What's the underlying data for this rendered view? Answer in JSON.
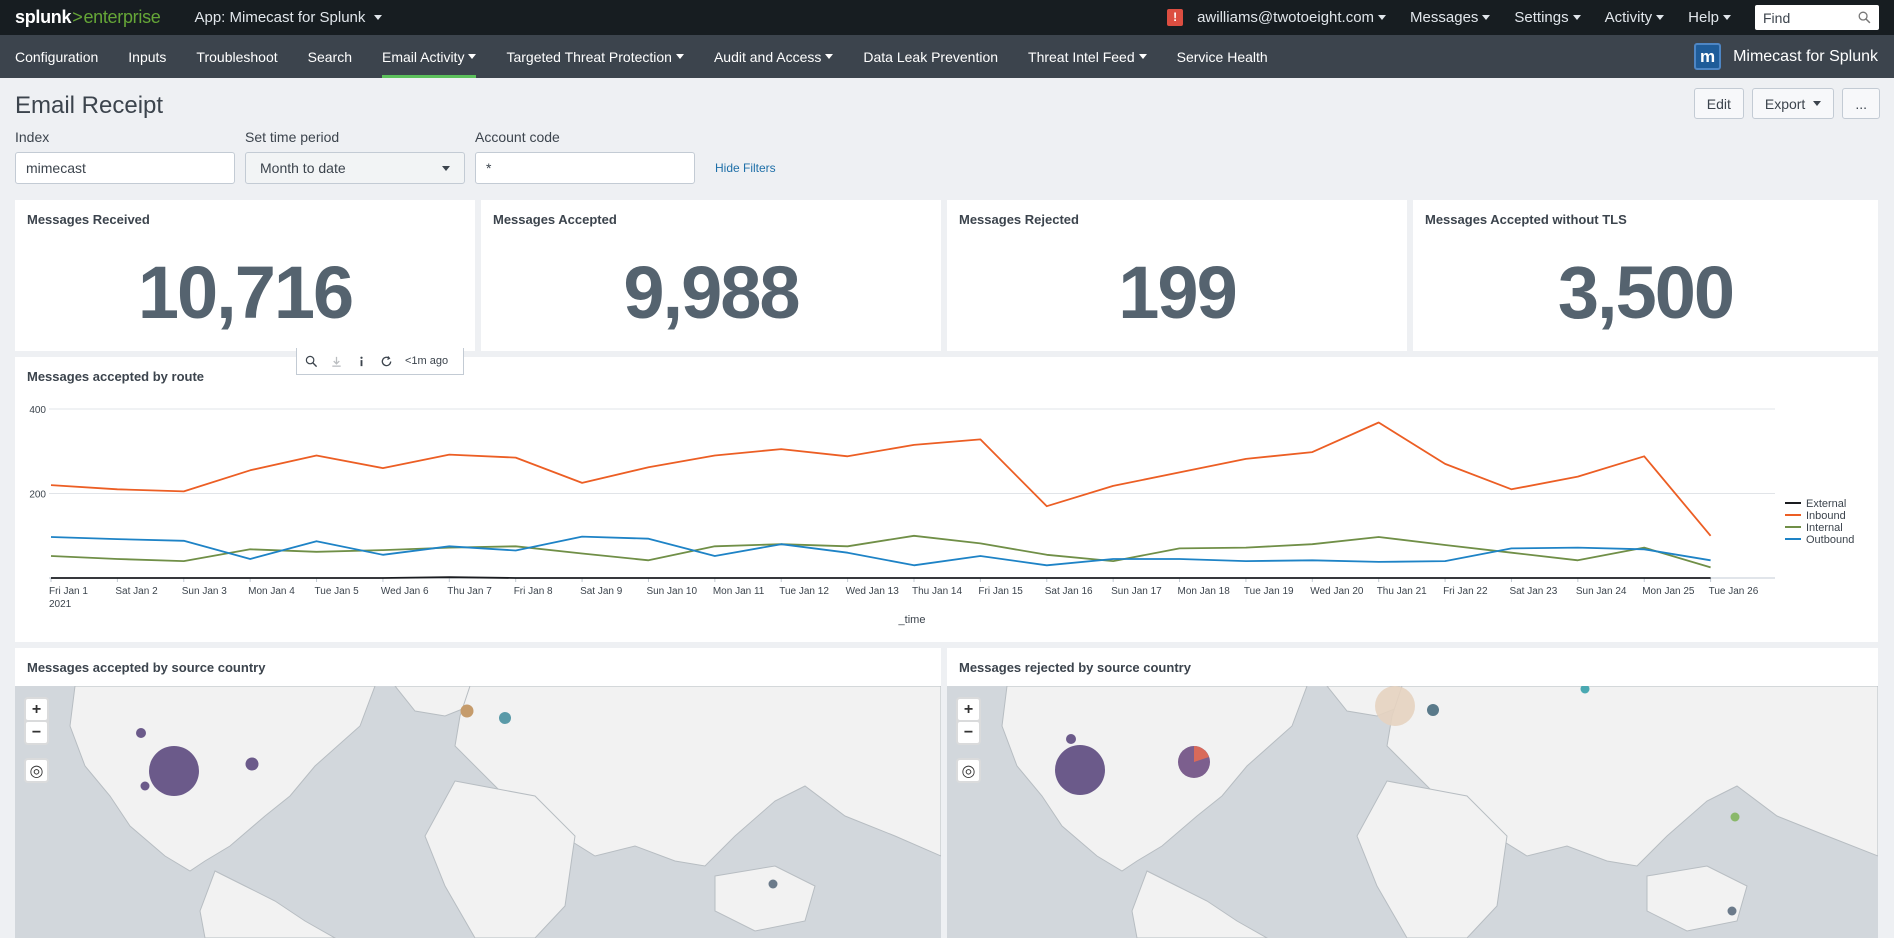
{
  "topbar": {
    "logo_main": "splunk",
    "logo_gt": ">",
    "logo_product": "enterprise",
    "app_label": "App: Mimecast for Splunk",
    "alert_badge": "!",
    "user": "awilliams@twotoeight.com",
    "messages": "Messages",
    "settings": "Settings",
    "activity": "Activity",
    "help": "Help",
    "find_placeholder": "Find"
  },
  "nav": {
    "items": [
      "Configuration",
      "Inputs",
      "Troubleshoot",
      "Search",
      "Email Activity",
      "Targeted Threat Protection",
      "Audit and Access",
      "Data Leak Prevention",
      "Threat Intel Feed",
      "Service Health"
    ],
    "brand": "Mimecast for Splunk",
    "brand_icon": "m"
  },
  "page": {
    "title": "Email Receipt",
    "edit": "Edit",
    "export": "Export",
    "more": "..."
  },
  "filters": {
    "index_label": "Index",
    "index_value": "mimecast",
    "time_label": "Set time period",
    "time_value": "Month to date",
    "account_label": "Account code",
    "account_value": "*",
    "hide_filters": "Hide Filters"
  },
  "singles": [
    {
      "title": "Messages Received",
      "value": "10,716"
    },
    {
      "title": "Messages Accepted",
      "value": "9,988"
    },
    {
      "title": "Messages Rejected",
      "value": "199"
    },
    {
      "title": "Messages Accepted without TLS",
      "value": "3,500"
    }
  ],
  "panel_toolbar": {
    "age": "<1m ago"
  },
  "route_panel": {
    "title": "Messages accepted by route"
  },
  "chart_data": {
    "type": "line",
    "title": "Messages accepted by route",
    "xlabel": "_time",
    "ylabel": "",
    "ylim": [
      0,
      400
    ],
    "yticks": [
      200,
      400
    ],
    "categories": [
      "Fri Jan 1",
      "Sat Jan 2",
      "Sun Jan 3",
      "Mon Jan 4",
      "Tue Jan 5",
      "Wed Jan 6",
      "Thu Jan 7",
      "Fri Jan 8",
      "Sat Jan 9",
      "Sun Jan 10",
      "Mon Jan 11",
      "Tue Jan 12",
      "Wed Jan 13",
      "Thu Jan 14",
      "Fri Jan 15",
      "Sat Jan 16",
      "Sun Jan 17",
      "Mon Jan 18",
      "Tue Jan 19",
      "Wed Jan 20",
      "Thu Jan 21",
      "Fri Jan 22",
      "Sat Jan 23",
      "Sun Jan 24",
      "Mon Jan 25",
      "Tue Jan 26"
    ],
    "first_tick_year": "2021",
    "legend_position": "right",
    "series": [
      {
        "name": "External",
        "color": "#1a1c20",
        "values": [
          0,
          0,
          0,
          0,
          0,
          0,
          2,
          0,
          0,
          0,
          0,
          0,
          0,
          0,
          0,
          0,
          0,
          0,
          0,
          0,
          0,
          0,
          0,
          0,
          0,
          0
        ]
      },
      {
        "name": "Inbound",
        "color": "#ec5e24",
        "values": [
          220,
          210,
          205,
          255,
          290,
          260,
          292,
          285,
          225,
          262,
          290,
          305,
          288,
          315,
          328,
          170,
          218,
          250,
          282,
          298,
          368,
          270,
          210,
          240,
          288,
          100
        ]
      },
      {
        "name": "Internal",
        "color": "#708f47",
        "values": [
          52,
          45,
          40,
          68,
          62,
          66,
          72,
          75,
          58,
          42,
          75,
          80,
          75,
          100,
          82,
          55,
          40,
          70,
          72,
          80,
          97,
          78,
          60,
          42,
          72,
          25
        ]
      },
      {
        "name": "Outbound",
        "color": "#1e83c6",
        "values": [
          97,
          92,
          88,
          45,
          87,
          55,
          75,
          65,
          98,
          93,
          52,
          80,
          60,
          30,
          52,
          30,
          45,
          45,
          40,
          42,
          38,
          40,
          70,
          72,
          68,
          42
        ]
      }
    ]
  },
  "maps": [
    {
      "title": "Messages accepted by source country"
    },
    {
      "title": "Messages rejected by source country"
    }
  ]
}
